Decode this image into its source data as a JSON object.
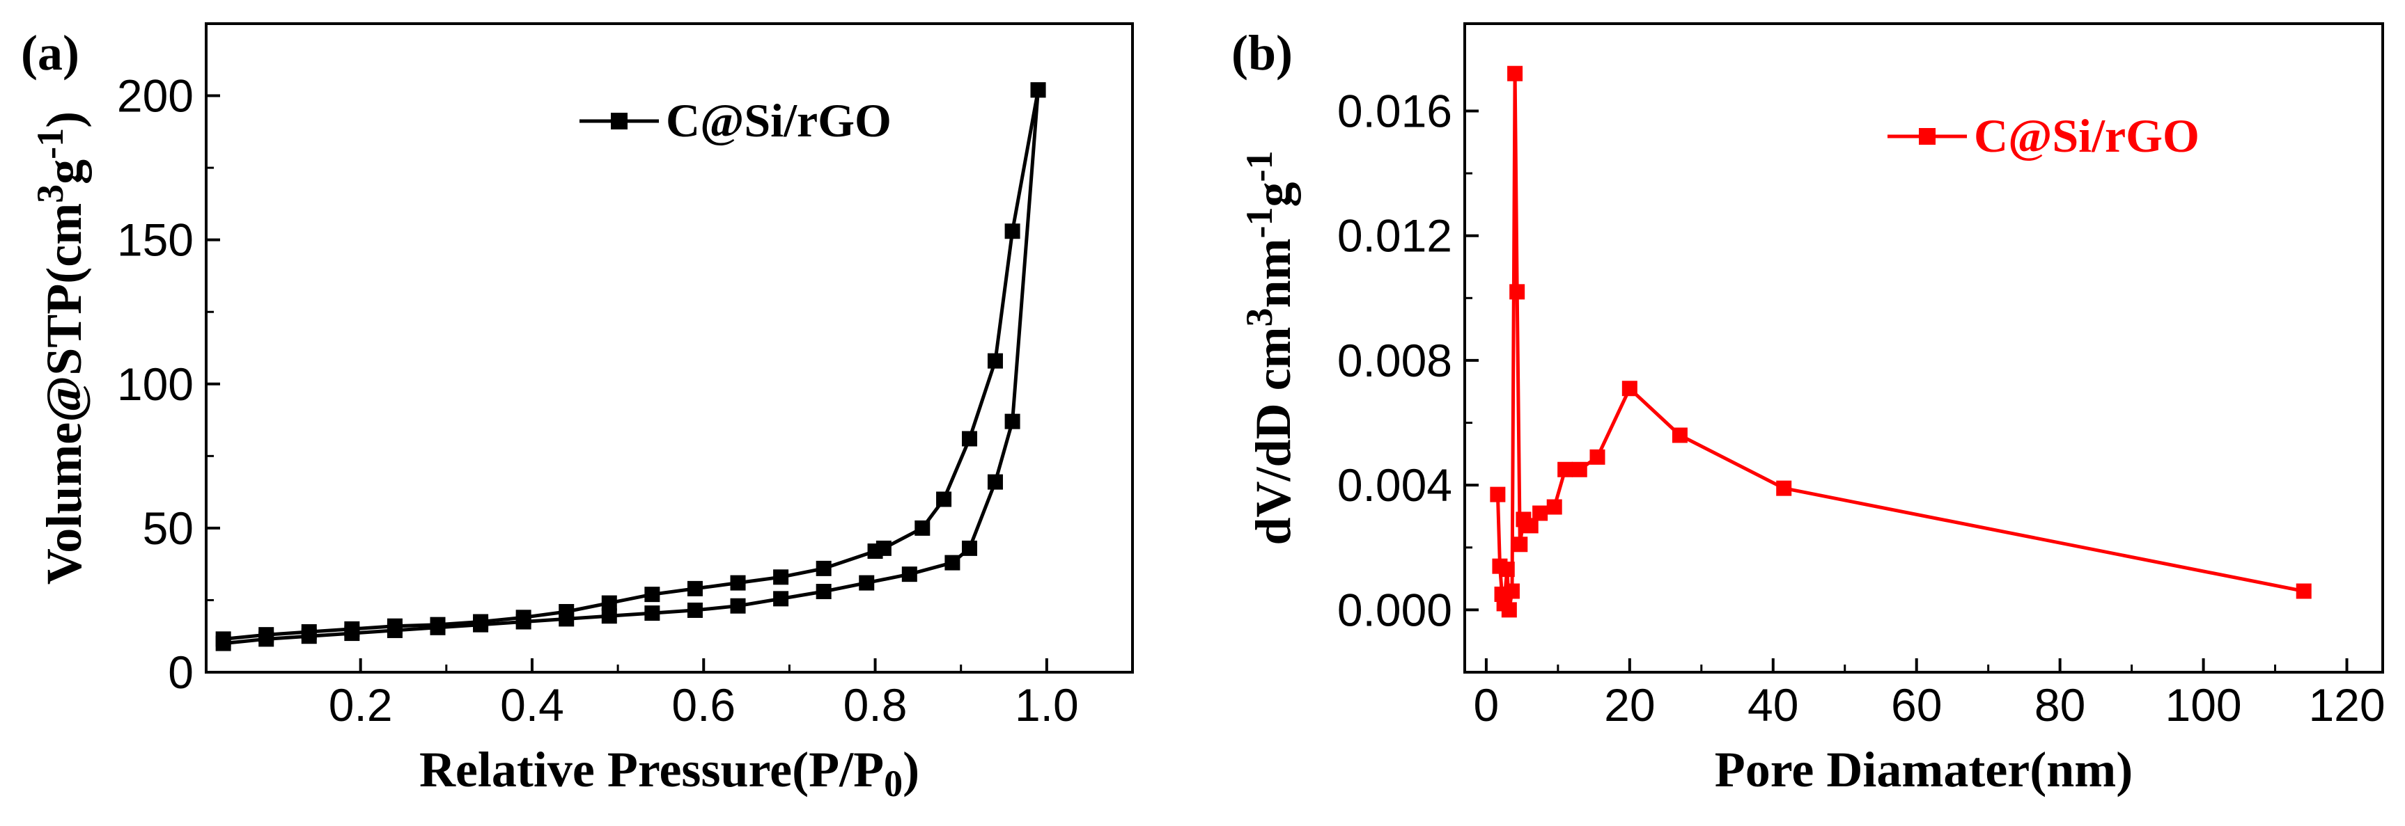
{
  "chart_data": [
    {
      "panel": "(a)",
      "type": "line",
      "title": "",
      "xlabel": "Relative Pressure(P/P0)",
      "xlabel_main": "Relative Pressure(P/P",
      "xlabel_sub": "0",
      "xlabel_end": ")",
      "ylabel": "Volume@STP(cm3g-1)",
      "ylabel_main": "Volume@STP(cm",
      "ylabel_sup1": "3",
      "ylabel_mid": "g",
      "ylabel_sup2": "-1",
      "ylabel_end": ")",
      "xlim": [
        0.02,
        1.1
      ],
      "ylim": [
        0,
        225
      ],
      "xticks": [
        0.2,
        0.4,
        0.6,
        0.8,
        1.0
      ],
      "xtick_labels": [
        "0.2",
        "0.4",
        "0.6",
        "0.8",
        "1.0"
      ],
      "yticks": [
        0,
        50,
        100,
        150,
        200
      ],
      "ytick_labels": [
        "0",
        "50",
        "100",
        "150",
        "200"
      ],
      "legend": {
        "label": "C@Si/rGO",
        "position": "top-center"
      },
      "color": "#000000",
      "series": [
        {
          "name": "C@Si/rGO adsorption",
          "x": [
            0.04,
            0.09,
            0.14,
            0.19,
            0.24,
            0.29,
            0.34,
            0.39,
            0.44,
            0.49,
            0.54,
            0.59,
            0.64,
            0.69,
            0.74,
            0.79,
            0.84,
            0.89,
            0.91,
            0.94,
            0.96,
            0.99
          ],
          "y": [
            10,
            11.5,
            12.5,
            13.5,
            14.5,
            15.5,
            16.5,
            17.5,
            18.5,
            19.5,
            20.5,
            21.5,
            23,
            25.5,
            28,
            31,
            34,
            38,
            43,
            66,
            87,
            202
          ]
        },
        {
          "name": "C@Si/rGO desorption",
          "x": [
            0.99,
            0.96,
            0.94,
            0.91,
            0.88,
            0.855,
            0.81,
            0.8,
            0.74,
            0.69,
            0.64,
            0.59,
            0.54,
            0.49,
            0.44,
            0.39,
            0.34,
            0.29,
            0.24,
            0.19,
            0.14,
            0.09,
            0.04
          ],
          "y": [
            202,
            153,
            108,
            81,
            60,
            50,
            43,
            42,
            36,
            33,
            31,
            29,
            27,
            24,
            21,
            19,
            17.5,
            16.5,
            16,
            15,
            14,
            13,
            11.5
          ]
        }
      ]
    },
    {
      "panel": "(b)",
      "type": "line",
      "title": "",
      "xlabel": "Pore Diamater(nm)",
      "ylabel": "dV/dD cm3nm-1g-1",
      "ylabel_main": "dV/dD cm",
      "ylabel_sup1": "3",
      "ylabel_mid": "nm",
      "ylabel_sup2": "-1",
      "ylabel_mid2": "g",
      "ylabel_sup3": "-1",
      "xlim": [
        -3,
        125
      ],
      "ylim": [
        -0.002,
        0.0188
      ],
      "xticks": [
        0,
        20,
        40,
        60,
        80,
        100,
        120
      ],
      "xtick_labels": [
        "0",
        "20",
        "40",
        "60",
        "80",
        "100",
        "120"
      ],
      "yticks": [
        0,
        0.004,
        0.008,
        0.012,
        0.016
      ],
      "ytick_labels": [
        "0.000",
        "0.004",
        "0.008",
        "0.012",
        "0.016"
      ],
      "legend": {
        "label": "C@Si/rGO",
        "position": "top-right"
      },
      "color": "#ff0000",
      "series": [
        {
          "name": "C@Si/rGO",
          "x": [
            1.6,
            1.9,
            2.2,
            2.5,
            2.9,
            3.2,
            3.6,
            4.0,
            4.3,
            4.7,
            5.2,
            6.2,
            7.5,
            9.5,
            11,
            13,
            15.5,
            20,
            27,
            41.5,
            114
          ],
          "y": [
            0.0037,
            0.0014,
            0.0005,
            0.0002,
            0.0013,
            0.0,
            0.0006,
            0.0172,
            0.0102,
            0.0021,
            0.0029,
            0.0027,
            0.0031,
            0.0033,
            0.0045,
            0.0045,
            0.0049,
            0.0071,
            0.0056,
            0.0039,
            0.0006
          ]
        }
      ]
    }
  ]
}
